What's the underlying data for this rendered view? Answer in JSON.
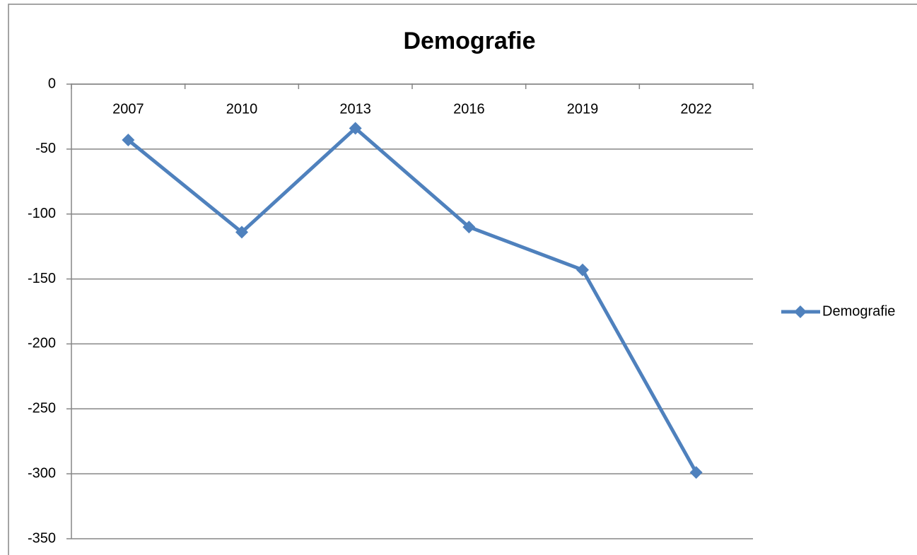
{
  "chart_data": {
    "type": "line",
    "title": "Demografie",
    "categories": [
      "2007",
      "2010",
      "2013",
      "2016",
      "2019",
      "2022"
    ],
    "series": [
      {
        "name": "Demografie",
        "color": "#4f81bd",
        "values": [
          -43,
          -114,
          -34,
          -110,
          -143,
          -299
        ]
      }
    ],
    "ylim": [
      -350,
      0
    ],
    "yticks": [
      0,
      -50,
      -100,
      -150,
      -200,
      -250,
      -300,
      -350
    ],
    "grid": true,
    "legend": "right",
    "marker": "diamond"
  }
}
